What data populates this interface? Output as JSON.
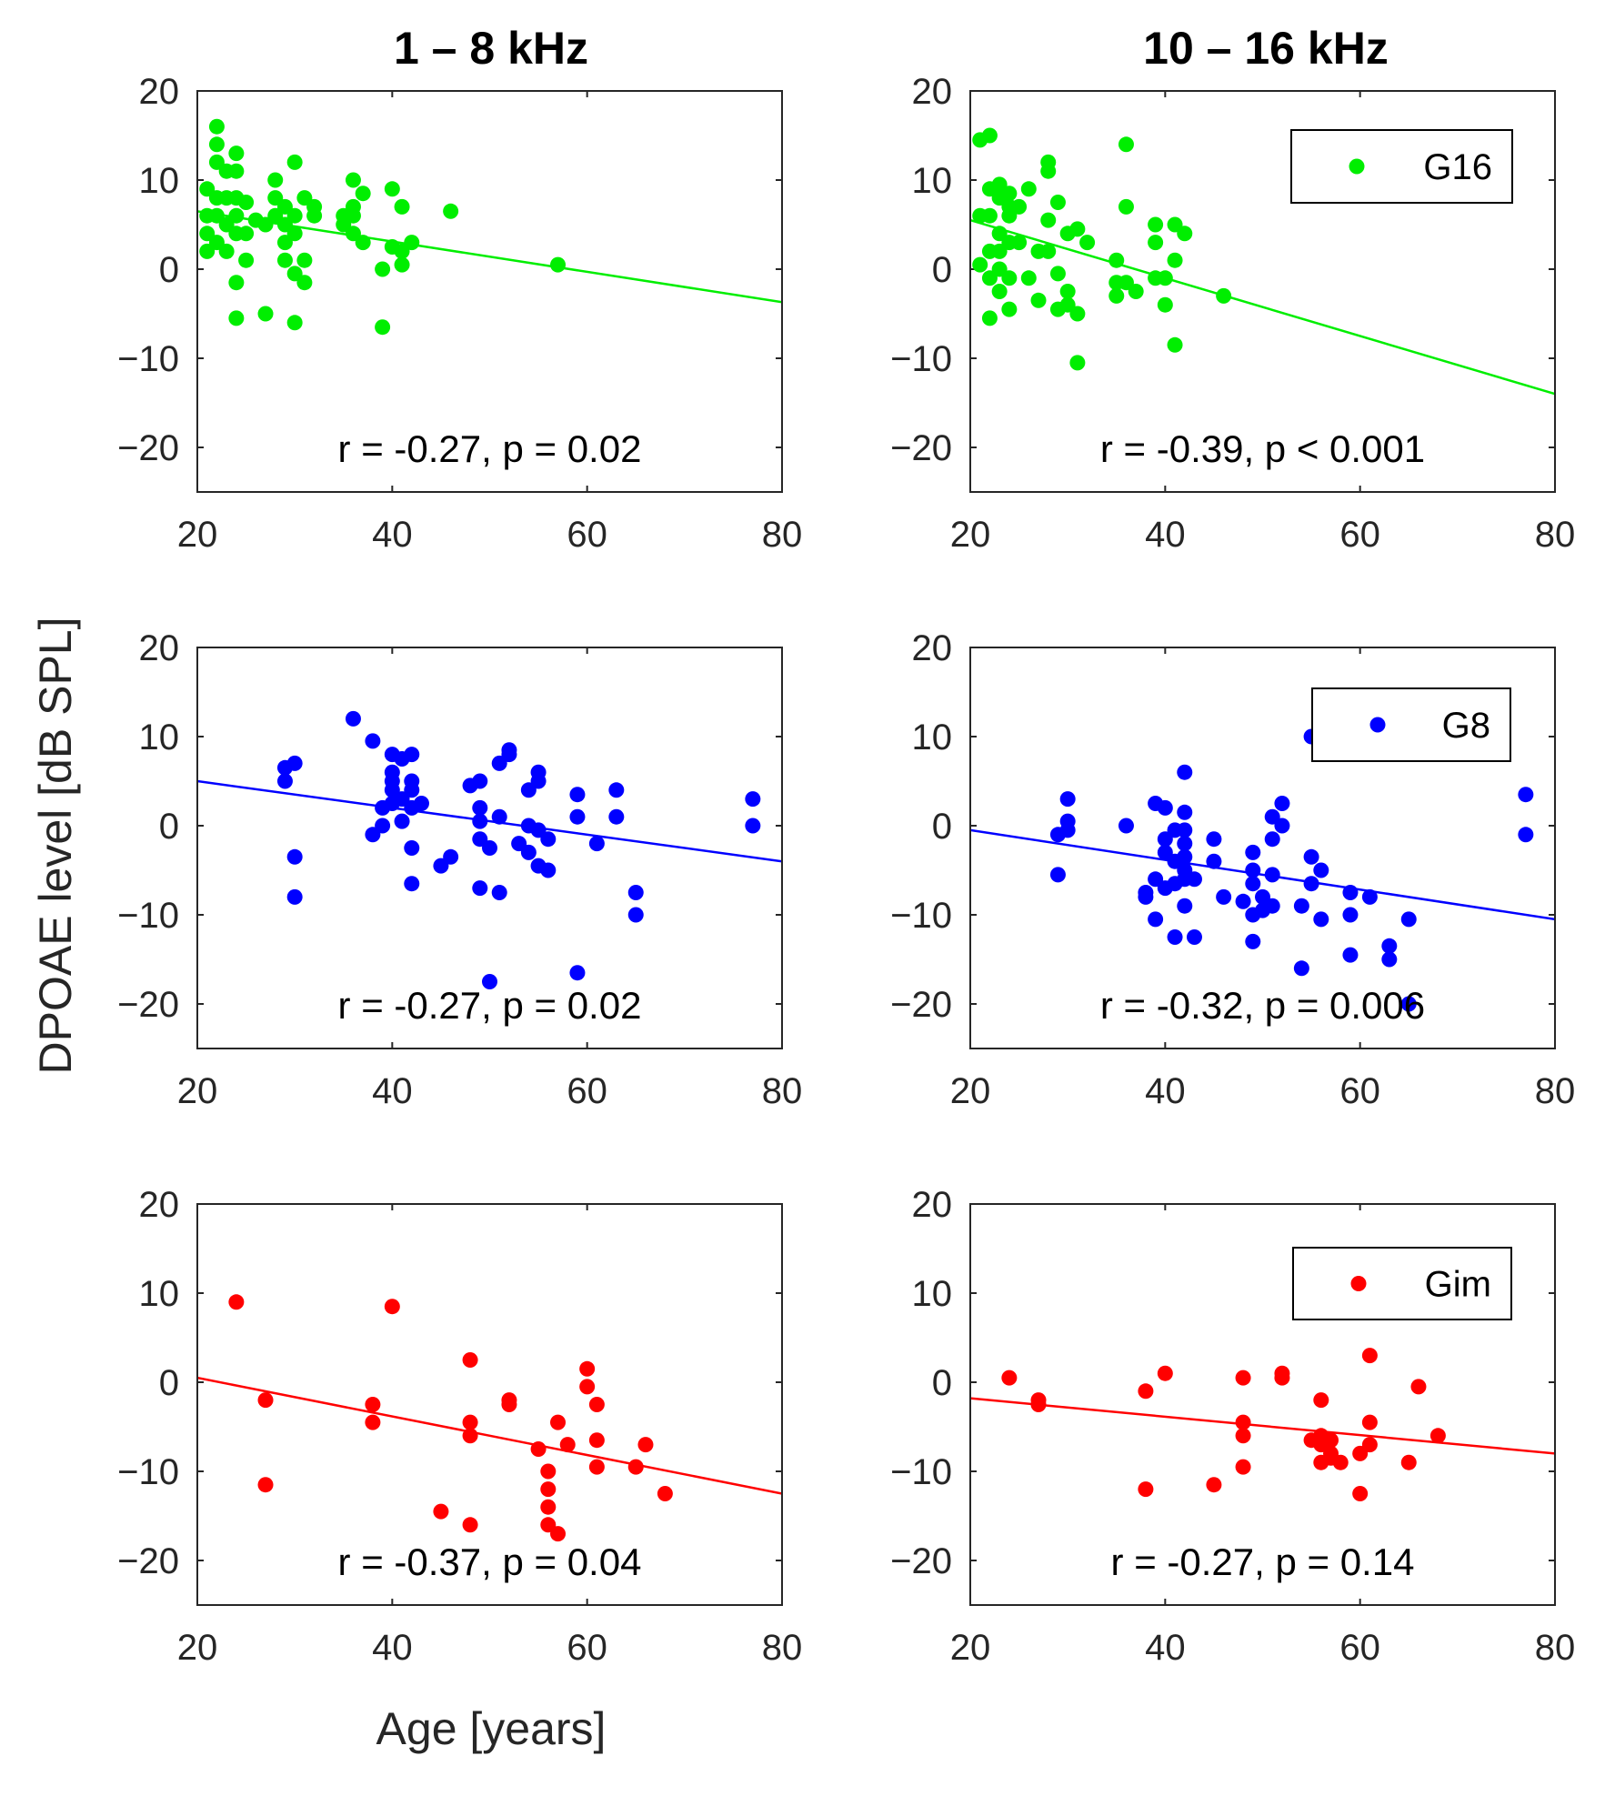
{
  "figure": {
    "col_titles": [
      "1 – 8 kHz",
      "10 – 16 kHz"
    ],
    "ylabel": "DPOAE level [dB SPL]",
    "xlabel": "Age [years]"
  },
  "chart_data": [
    {
      "type": "scatter",
      "row": 0,
      "col": 0,
      "color": "#00ee00",
      "xlim": [
        20,
        80
      ],
      "ylim": [
        -25,
        20
      ],
      "xticks": [
        20,
        40,
        60,
        80
      ],
      "yticks": [
        -20,
        -10,
        0,
        10,
        20
      ],
      "annotation": "r = -0.27, p = 0.02",
      "legend": null,
      "fit": {
        "x": [
          20,
          80
        ],
        "y": [
          6.5,
          -3.7
        ]
      },
      "points": [
        [
          21,
          9
        ],
        [
          21,
          6
        ],
        [
          21,
          4
        ],
        [
          21,
          2
        ],
        [
          22,
          16
        ],
        [
          22,
          14
        ],
        [
          22,
          12
        ],
        [
          22,
          8
        ],
        [
          22,
          6
        ],
        [
          22,
          3
        ],
        [
          23,
          11
        ],
        [
          23,
          8
        ],
        [
          23,
          5
        ],
        [
          23,
          2
        ],
        [
          24,
          13
        ],
        [
          24,
          11
        ],
        [
          24,
          8
        ],
        [
          24,
          6
        ],
        [
          24,
          4
        ],
        [
          24,
          -1.5
        ],
        [
          24,
          -5.5
        ],
        [
          25,
          7.5
        ],
        [
          25,
          4
        ],
        [
          25,
          1
        ],
        [
          26,
          5.5
        ],
        [
          27,
          5
        ],
        [
          27,
          -5
        ],
        [
          28,
          10
        ],
        [
          28,
          8
        ],
        [
          28,
          6
        ],
        [
          29,
          7
        ],
        [
          29,
          5
        ],
        [
          29,
          3
        ],
        [
          29,
          1
        ],
        [
          30,
          12
        ],
        [
          30,
          6
        ],
        [
          30,
          4
        ],
        [
          30,
          -0.5
        ],
        [
          30,
          -6
        ],
        [
          31,
          8
        ],
        [
          31,
          1
        ],
        [
          31,
          -1.5
        ],
        [
          32,
          7
        ],
        [
          32,
          6
        ],
        [
          35,
          6
        ],
        [
          35,
          5
        ],
        [
          36,
          10
        ],
        [
          36,
          7
        ],
        [
          36,
          6
        ],
        [
          36,
          4
        ],
        [
          37,
          8.5
        ],
        [
          37,
          3
        ],
        [
          39,
          0
        ],
        [
          39,
          -6.5
        ],
        [
          40,
          9
        ],
        [
          40,
          2.5
        ],
        [
          41,
          2
        ],
        [
          41,
          0.5
        ],
        [
          41,
          7
        ],
        [
          42,
          3
        ],
        [
          46,
          6.5
        ],
        [
          57,
          0.5
        ]
      ]
    },
    {
      "type": "scatter",
      "row": 0,
      "col": 1,
      "color": "#00ee00",
      "xlim": [
        20,
        80
      ],
      "ylim": [
        -25,
        20
      ],
      "xticks": [
        20,
        40,
        60,
        80
      ],
      "yticks": [
        -20,
        -10,
        0,
        10,
        20
      ],
      "annotation": "r = -0.39, p < 0.001",
      "legend": "G16",
      "fit": {
        "x": [
          20,
          80
        ],
        "y": [
          5.5,
          -14
        ]
      },
      "points": [
        [
          21,
          14.5
        ],
        [
          21,
          6
        ],
        [
          21,
          0.5
        ],
        [
          22,
          15
        ],
        [
          22,
          9
        ],
        [
          22,
          6
        ],
        [
          22,
          2
        ],
        [
          22,
          -1
        ],
        [
          22,
          -5.5
        ],
        [
          23,
          9.5
        ],
        [
          23,
          8
        ],
        [
          23,
          4
        ],
        [
          23,
          2
        ],
        [
          23,
          0
        ],
        [
          23,
          -2.5
        ],
        [
          24,
          8.5
        ],
        [
          24,
          7
        ],
        [
          24,
          6
        ],
        [
          24,
          3
        ],
        [
          24,
          -1
        ],
        [
          24,
          -4.5
        ],
        [
          25,
          7
        ],
        [
          25,
          3
        ],
        [
          26,
          9
        ],
        [
          26,
          -1
        ],
        [
          27,
          2
        ],
        [
          27,
          -3.5
        ],
        [
          28,
          12
        ],
        [
          28,
          11
        ],
        [
          28,
          5.5
        ],
        [
          28,
          2
        ],
        [
          29,
          7.5
        ],
        [
          29,
          -0.5
        ],
        [
          29,
          -4.5
        ],
        [
          30,
          -4
        ],
        [
          30,
          -2.5
        ],
        [
          30,
          4
        ],
        [
          31,
          4.5
        ],
        [
          31,
          -5
        ],
        [
          31,
          -10.5
        ],
        [
          32,
          3
        ],
        [
          35,
          -1.5
        ],
        [
          35,
          -3
        ],
        [
          35,
          1
        ],
        [
          36,
          14
        ],
        [
          36,
          7
        ],
        [
          36,
          -1.5
        ],
        [
          37,
          -2.5
        ],
        [
          39,
          5
        ],
        [
          39,
          3
        ],
        [
          39,
          -1
        ],
        [
          40,
          -1
        ],
        [
          40,
          -4
        ],
        [
          41,
          5
        ],
        [
          41,
          1
        ],
        [
          41,
          -8.5
        ],
        [
          42,
          4
        ],
        [
          46,
          -3
        ]
      ]
    },
    {
      "type": "scatter",
      "row": 1,
      "col": 0,
      "color": "#0000ff",
      "xlim": [
        20,
        80
      ],
      "ylim": [
        -25,
        20
      ],
      "xticks": [
        20,
        40,
        60,
        80
      ],
      "yticks": [
        -20,
        -10,
        0,
        10,
        20
      ],
      "annotation": "r = -0.27, p = 0.02",
      "legend": null,
      "fit": {
        "x": [
          20,
          80
        ],
        "y": [
          5,
          -4
        ]
      },
      "points": [
        [
          29,
          6.5
        ],
        [
          29,
          5
        ],
        [
          30,
          7
        ],
        [
          30,
          -3.5
        ],
        [
          30,
          -8
        ],
        [
          36,
          12
        ],
        [
          38,
          9.5
        ],
        [
          38,
          -1
        ],
        [
          39,
          0
        ],
        [
          39,
          2
        ],
        [
          40,
          8
        ],
        [
          40,
          6
        ],
        [
          40,
          5
        ],
        [
          40,
          4
        ],
        [
          40,
          2.5
        ],
        [
          41,
          7.5
        ],
        [
          41,
          3
        ],
        [
          41,
          0.5
        ],
        [
          42,
          8
        ],
        [
          42,
          5
        ],
        [
          42,
          4
        ],
        [
          42,
          2
        ],
        [
          42,
          -2.5
        ],
        [
          42,
          -6.5
        ],
        [
          43,
          2.5
        ],
        [
          45,
          -4.5
        ],
        [
          46,
          -3.5
        ],
        [
          48,
          4.5
        ],
        [
          49,
          5
        ],
        [
          49,
          2
        ],
        [
          49,
          0.5
        ],
        [
          49,
          -1.5
        ],
        [
          49,
          -7
        ],
        [
          50,
          -2.5
        ],
        [
          50,
          -17.5
        ],
        [
          51,
          7
        ],
        [
          51,
          1
        ],
        [
          51,
          -7.5
        ],
        [
          52,
          8.5
        ],
        [
          52,
          8
        ],
        [
          53,
          -2
        ],
        [
          54,
          4
        ],
        [
          54,
          0
        ],
        [
          54,
          -3
        ],
        [
          55,
          6
        ],
        [
          55,
          5
        ],
        [
          55,
          -0.5
        ],
        [
          55,
          -4.5
        ],
        [
          56,
          -1.5
        ],
        [
          56,
          -5
        ],
        [
          59,
          3.5
        ],
        [
          59,
          1
        ],
        [
          59,
          -16.5
        ],
        [
          61,
          -2
        ],
        [
          63,
          4
        ],
        [
          63,
          1
        ],
        [
          65,
          -7.5
        ],
        [
          65,
          -10
        ],
        [
          77,
          3
        ],
        [
          77,
          0
        ]
      ]
    },
    {
      "type": "scatter",
      "row": 1,
      "col": 1,
      "color": "#0000ff",
      "xlim": [
        20,
        80
      ],
      "ylim": [
        -25,
        20
      ],
      "xticks": [
        20,
        40,
        60,
        80
      ],
      "yticks": [
        -20,
        -10,
        0,
        10,
        20
      ],
      "annotation": "r = -0.32, p = 0.006",
      "legend": "G8",
      "fit": {
        "x": [
          20,
          80
        ],
        "y": [
          -0.5,
          -10.5
        ]
      },
      "points": [
        [
          29,
          -1
        ],
        [
          29,
          -5.5
        ],
        [
          30,
          3
        ],
        [
          30,
          0.5
        ],
        [
          30,
          -0.5
        ],
        [
          36,
          0
        ],
        [
          38,
          -7.5
        ],
        [
          38,
          -8
        ],
        [
          39,
          2.5
        ],
        [
          39,
          -6
        ],
        [
          39,
          -10.5
        ],
        [
          40,
          2
        ],
        [
          40,
          -1.5
        ],
        [
          40,
          -3
        ],
        [
          40,
          -7
        ],
        [
          41,
          -0.5
        ],
        [
          41,
          -4
        ],
        [
          41,
          -6.5
        ],
        [
          41,
          -12.5
        ],
        [
          42,
          6
        ],
        [
          42,
          1.5
        ],
        [
          42,
          -0.5
        ],
        [
          42,
          -2
        ],
        [
          42,
          -3.5
        ],
        [
          42,
          -5
        ],
        [
          42,
          -6
        ],
        [
          42,
          -9
        ],
        [
          43,
          -6
        ],
        [
          43,
          -12.5
        ],
        [
          45,
          -1.5
        ],
        [
          45,
          -4
        ],
        [
          46,
          -8
        ],
        [
          48,
          -8.5
        ],
        [
          49,
          -3
        ],
        [
          49,
          -5
        ],
        [
          49,
          -6.5
        ],
        [
          49,
          -10
        ],
        [
          49,
          -13
        ],
        [
          50,
          -8
        ],
        [
          50,
          -9.5
        ],
        [
          51,
          1
        ],
        [
          51,
          -1.5
        ],
        [
          51,
          -5.5
        ],
        [
          51,
          -9
        ],
        [
          52,
          2.5
        ],
        [
          52,
          0
        ],
        [
          54,
          -9
        ],
        [
          54,
          -16
        ],
        [
          55,
          10
        ],
        [
          55,
          -3.5
        ],
        [
          55,
          -6.5
        ],
        [
          56,
          -5
        ],
        [
          56,
          -10.5
        ],
        [
          59,
          -7.5
        ],
        [
          59,
          -10
        ],
        [
          59,
          -14.5
        ],
        [
          61,
          -8
        ],
        [
          63,
          -13.5
        ],
        [
          63,
          -15
        ],
        [
          65,
          -10.5
        ],
        [
          65,
          -20
        ],
        [
          77,
          3.5
        ],
        [
          77,
          -1
        ]
      ]
    },
    {
      "type": "scatter",
      "row": 2,
      "col": 0,
      "color": "#ff0000",
      "xlim": [
        20,
        80
      ],
      "ylim": [
        -25,
        20
      ],
      "xticks": [
        20,
        40,
        60,
        80
      ],
      "yticks": [
        -20,
        -10,
        0,
        10,
        20
      ],
      "annotation": "r = -0.37, p = 0.04",
      "legend": null,
      "fit": {
        "x": [
          20,
          80
        ],
        "y": [
          0.5,
          -12.5
        ]
      },
      "points": [
        [
          24,
          9
        ],
        [
          27,
          -2
        ],
        [
          27,
          -11.5
        ],
        [
          38,
          -2.5
        ],
        [
          38,
          -4.5
        ],
        [
          40,
          8.5
        ],
        [
          45,
          -14.5
        ],
        [
          48,
          2.5
        ],
        [
          48,
          -4.5
        ],
        [
          48,
          -6
        ],
        [
          48,
          -16
        ],
        [
          52,
          -2
        ],
        [
          52,
          -2.5
        ],
        [
          55,
          -7.5
        ],
        [
          56,
          -10
        ],
        [
          56,
          -12
        ],
        [
          56,
          -14
        ],
        [
          56,
          -16
        ],
        [
          57,
          -4.5
        ],
        [
          57,
          -17
        ],
        [
          58,
          -7
        ],
        [
          60,
          1.5
        ],
        [
          60,
          -0.5
        ],
        [
          61,
          -2.5
        ],
        [
          61,
          -6.5
        ],
        [
          61,
          -9.5
        ],
        [
          65,
          -9.5
        ],
        [
          66,
          -7
        ],
        [
          68,
          -12.5
        ]
      ]
    },
    {
      "type": "scatter",
      "row": 2,
      "col": 1,
      "color": "#ff0000",
      "xlim": [
        20,
        80
      ],
      "ylim": [
        -25,
        20
      ],
      "xticks": [
        20,
        40,
        60,
        80
      ],
      "yticks": [
        -20,
        -10,
        0,
        10,
        20
      ],
      "annotation": "r = -0.27, p = 0.14",
      "legend": "Gim",
      "fit": {
        "x": [
          20,
          80
        ],
        "y": [
          -1.8,
          -8
        ]
      },
      "points": [
        [
          24,
          0.5
        ],
        [
          27,
          -2
        ],
        [
          27,
          -2.5
        ],
        [
          38,
          -1
        ],
        [
          38,
          -12
        ],
        [
          40,
          1
        ],
        [
          45,
          -11.5
        ],
        [
          48,
          0.5
        ],
        [
          48,
          -4.5
        ],
        [
          48,
          -6
        ],
        [
          48,
          -9.5
        ],
        [
          52,
          1
        ],
        [
          52,
          0.5
        ],
        [
          55,
          -6.5
        ],
        [
          56,
          -2
        ],
        [
          56,
          -6
        ],
        [
          56,
          -7
        ],
        [
          56,
          -9
        ],
        [
          57,
          -6.5
        ],
        [
          57,
          -8
        ],
        [
          57,
          -8.5
        ],
        [
          58,
          -9
        ],
        [
          60,
          -8
        ],
        [
          60,
          -12.5
        ],
        [
          61,
          3
        ],
        [
          61,
          -4.5
        ],
        [
          61,
          -7
        ],
        [
          65,
          -9
        ],
        [
          66,
          -0.5
        ],
        [
          68,
          -6
        ]
      ]
    }
  ]
}
